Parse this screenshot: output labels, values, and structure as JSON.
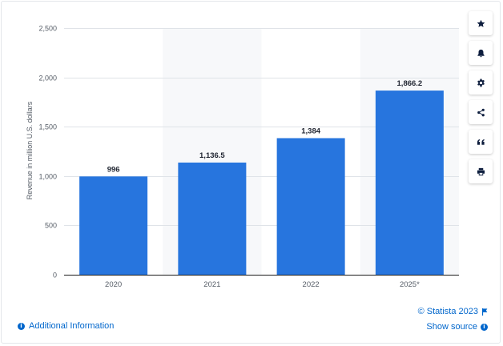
{
  "chart_data": {
    "type": "bar",
    "categories": [
      "2020",
      "2021",
      "2022",
      "2025*"
    ],
    "values": [
      996,
      1136.5,
      1384,
      1866.2
    ],
    "value_labels": [
      "996",
      "1,136.5",
      "1,384",
      "1,866.2"
    ],
    "ylabel": "Revenue in million U.S. dollars",
    "ylim": [
      0,
      2500
    ],
    "yticks": [
      0,
      500,
      1000,
      1500,
      2000,
      2500
    ],
    "ytick_labels": [
      "0",
      "500",
      "1,000",
      "1,500",
      "2,000",
      "2,500"
    ],
    "grid": true,
    "bar_color": "#2775de",
    "band_color": "#f7f8fa"
  },
  "toolbar": {
    "items": [
      "star-icon",
      "bell-icon",
      "gear-icon",
      "share-icon",
      "quote-icon",
      "print-icon"
    ]
  },
  "footer": {
    "additional_info": "Additional Information",
    "copyright": "© Statista 2023",
    "show_source": "Show source"
  }
}
